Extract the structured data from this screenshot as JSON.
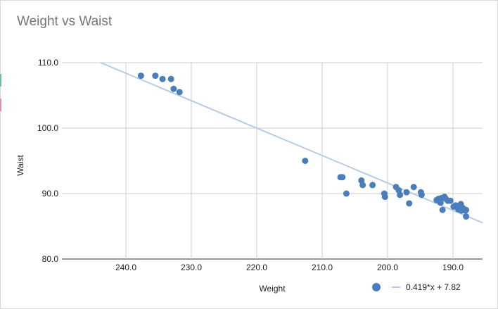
{
  "chart_data": {
    "type": "scatter",
    "title": "Weight vs Waist",
    "xlabel": "Weight",
    "ylabel": "Waist",
    "xlim": [
      245,
      185
    ],
    "x_reversed": true,
    "ylim": [
      80,
      110
    ],
    "xticks": [
      240,
      230,
      220,
      210,
      200,
      190
    ],
    "xtick_labels": [
      "240.0",
      "230.0",
      "220.0",
      "210.0",
      "200.0",
      "190.0"
    ],
    "yticks": [
      80,
      90,
      100,
      110
    ],
    "ytick_labels": [
      "80.0",
      "90.0",
      "100.0",
      "110.0"
    ],
    "grid": true,
    "legend_position": "bottom-right",
    "series": [
      {
        "name": "Waist",
        "color": "#4a7ebb",
        "x": [
          237.7,
          235.5,
          234.4,
          233.1,
          232.7,
          231.8,
          212.6,
          207.2,
          206.9,
          206.3,
          204.0,
          203.8,
          202.3,
          200.5,
          200.4,
          198.7,
          198.3,
          198.1,
          197.1,
          196.7,
          196.0,
          194.9,
          194.8,
          192.5,
          192.2,
          191.9,
          191.8,
          191.6,
          191.3,
          191.1,
          190.8,
          190.4,
          189.9,
          189.6,
          189.2,
          188.8,
          188.7,
          188.5,
          188.1,
          188.0,
          188.0
        ],
        "y": [
          108.0,
          108.0,
          107.5,
          107.5,
          106.0,
          105.5,
          95.0,
          92.5,
          92.5,
          90.0,
          92.0,
          91.3,
          91.3,
          90.0,
          89.5,
          91.0,
          90.5,
          89.8,
          90.2,
          88.5,
          91.0,
          90.2,
          89.8,
          89.0,
          89.2,
          88.6,
          89.3,
          87.5,
          89.5,
          89.2,
          88.9,
          88.9,
          88.0,
          88.2,
          87.6,
          88.4,
          87.4,
          87.8,
          87.4,
          87.5,
          86.5
        ]
      }
    ],
    "trendline": {
      "label": "0.419*x + 7.82",
      "slope": 0.419,
      "intercept": 7.82,
      "color": "#b7cce6"
    }
  }
}
